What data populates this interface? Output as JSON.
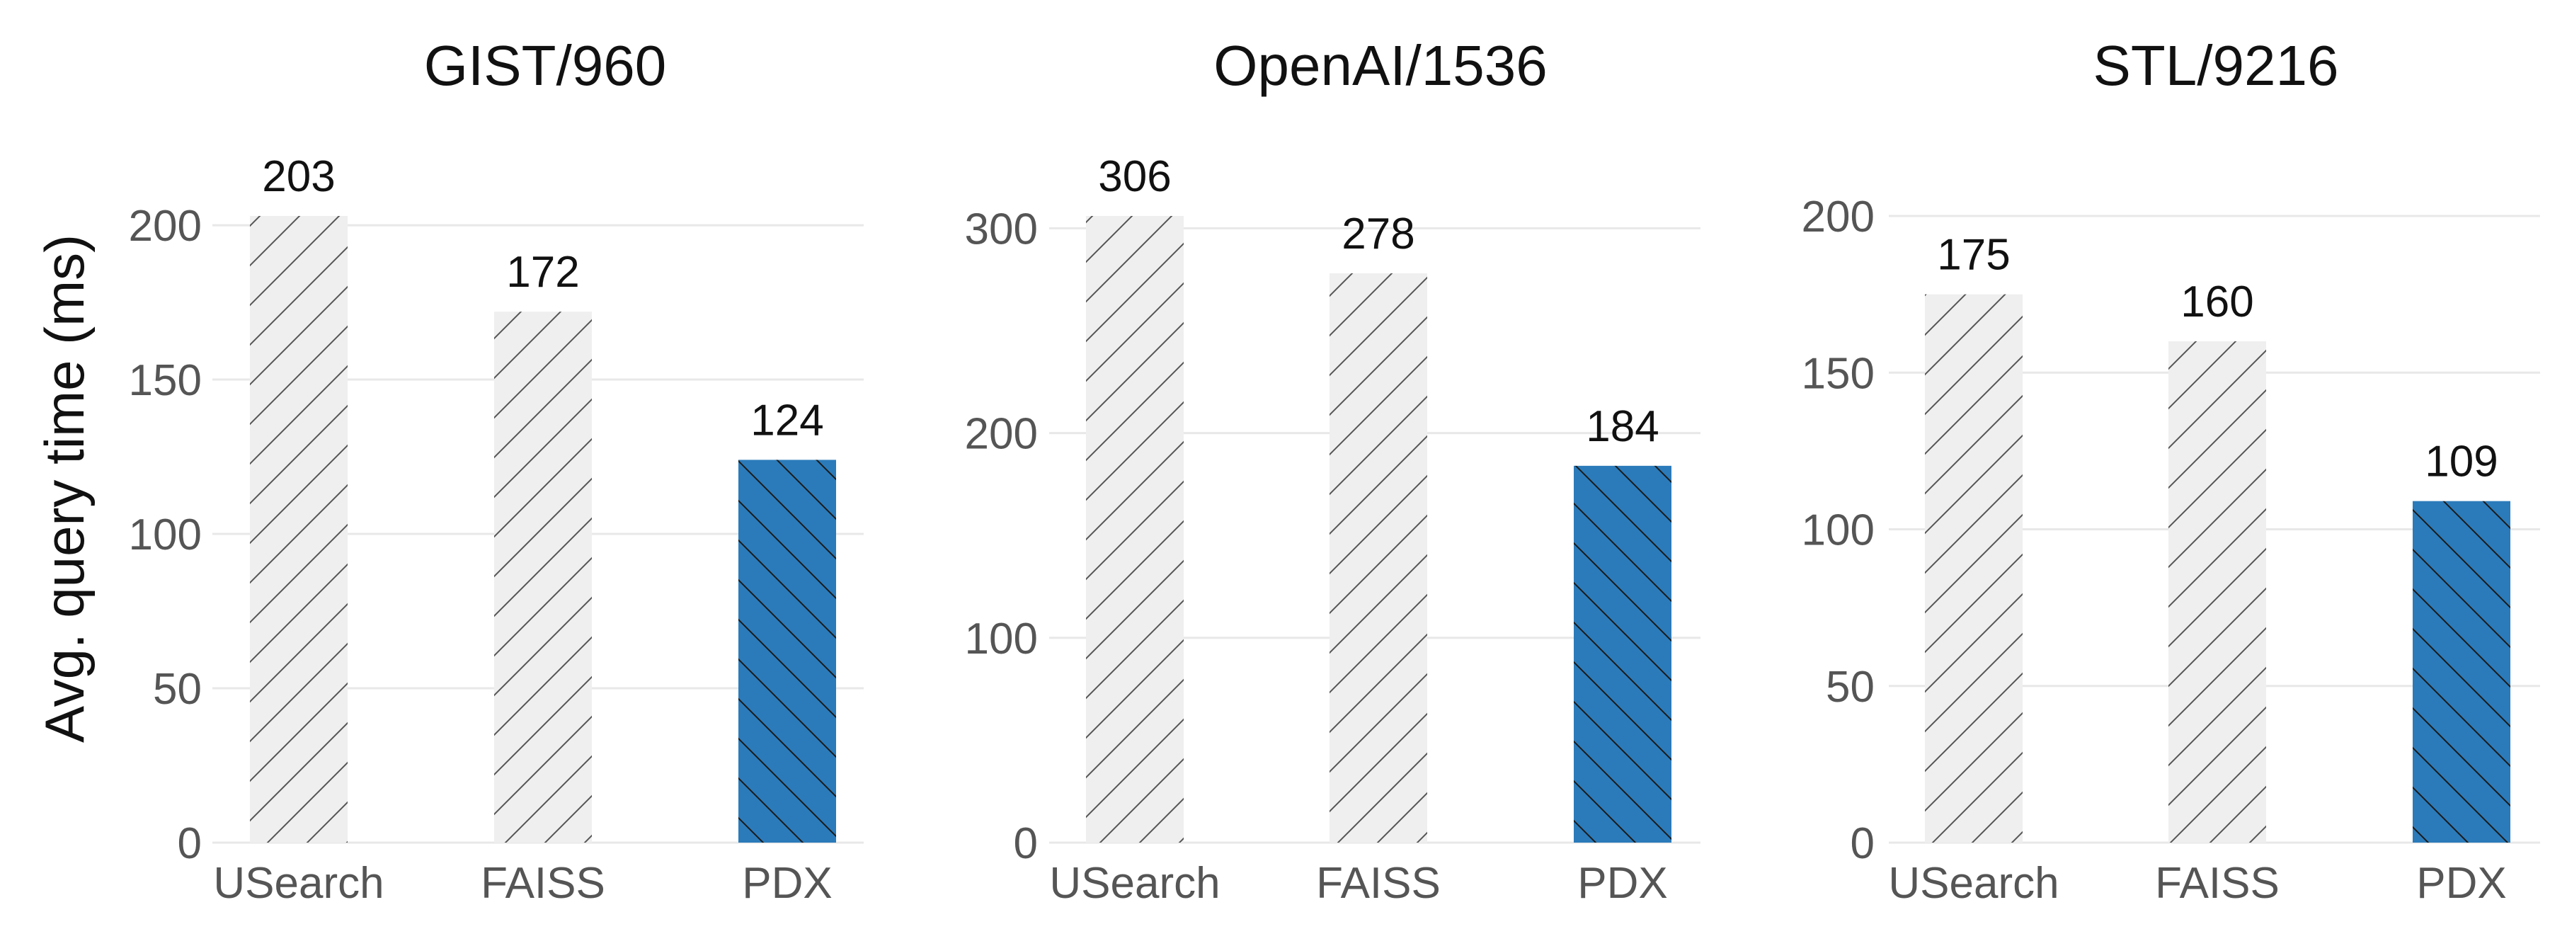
{
  "colors": {
    "baseline": "#efefef",
    "highlight": "#2b7bba",
    "hatch": "#444444",
    "grid": "#e8e8e8",
    "text": "#111111",
    "tick_text": "#555555"
  },
  "chart_data": [
    {
      "type": "bar",
      "title": "GIST/960",
      "ylabel": "Avg. query time (ms)",
      "categories": [
        "USearch",
        "FAISS",
        "PDX"
      ],
      "values": [
        203,
        172,
        124
      ],
      "data_labels": [
        "203",
        "172",
        "124"
      ],
      "highlight": [
        false,
        false,
        true
      ],
      "yticks": [
        0,
        50,
        100,
        150,
        200
      ],
      "ylim": [
        0,
        203
      ],
      "grid": true,
      "legend": "none"
    },
    {
      "type": "bar",
      "title": "OpenAI/1536",
      "ylabel": "",
      "categories": [
        "USearch",
        "FAISS",
        "PDX"
      ],
      "values": [
        306,
        278,
        184
      ],
      "data_labels": [
        "306",
        "278",
        "184"
      ],
      "highlight": [
        false,
        false,
        true
      ],
      "yticks": [
        0,
        100,
        200,
        300
      ],
      "ylim": [
        0,
        306
      ],
      "grid": true,
      "legend": "none"
    },
    {
      "type": "bar",
      "title": "STL/9216",
      "ylabel": "",
      "categories": [
        "USearch",
        "FAISS",
        "PDX"
      ],
      "values": [
        175,
        160,
        109
      ],
      "data_labels": [
        "175",
        "160",
        "109"
      ],
      "highlight": [
        false,
        false,
        true
      ],
      "yticks": [
        0,
        50,
        100,
        150,
        200
      ],
      "ylim": [
        0,
        200
      ],
      "grid": true,
      "legend": "none"
    }
  ]
}
